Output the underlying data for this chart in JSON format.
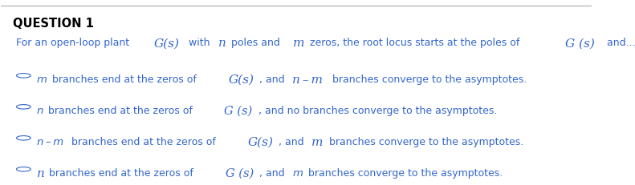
{
  "title": "QUESTION 1",
  "background_color": "#ffffff",
  "top_line_color": "#aaaaaa",
  "title_color": "#000000",
  "title_fontsize": 10.5,
  "question_color": "#3366cc",
  "option_color": "#3366cc",
  "figsize": [
    7.91,
    2.32
  ],
  "dpi": 100,
  "question_text_parts": [
    {
      "text": "For an open-loop plant ",
      "style": "normal",
      "size": 9
    },
    {
      "text": "G(s)",
      "style": "italic_large",
      "size": 11
    },
    {
      "text": " with ",
      "style": "normal",
      "size": 9
    },
    {
      "text": "n",
      "style": "italic_large",
      "size": 11
    },
    {
      "text": " poles and ",
      "style": "normal",
      "size": 9
    },
    {
      "text": "m",
      "style": "italic_large",
      "size": 11
    },
    {
      "text": " zeros, the root locus starts at the poles of ",
      "style": "normal",
      "size": 9
    },
    {
      "text": "G (s)",
      "style": "italic_large",
      "size": 11
    },
    {
      "text": "  and...",
      "style": "normal",
      "size": 9
    }
  ],
  "options": [
    {
      "parts": [
        {
          "text": "m",
          "style": "italic",
          "size": 9.5
        },
        {
          "text": " branches end at the zeros of ",
          "style": "normal",
          "size": 9
        },
        {
          "text": "G(s)",
          "style": "italic_large",
          "size": 11
        },
        {
          "text": ", and ",
          "style": "normal",
          "size": 9
        },
        {
          "text": "n – m",
          "style": "italic_large",
          "size": 11
        },
        {
          "text": " branches converge to the asymptotes.",
          "style": "normal",
          "size": 9
        }
      ]
    },
    {
      "parts": [
        {
          "text": "n",
          "style": "italic",
          "size": 9.5
        },
        {
          "text": " branches end at the zeros of ",
          "style": "normal",
          "size": 9
        },
        {
          "text": "G (s)",
          "style": "italic_large",
          "size": 10.5
        },
        {
          "text": ", and no branches converge to the asymptotes.",
          "style": "normal",
          "size": 9
        }
      ]
    },
    {
      "parts": [
        {
          "text": "n – m",
          "style": "italic",
          "size": 9.5
        },
        {
          "text": " branches end at the zeros of ",
          "style": "normal",
          "size": 9
        },
        {
          "text": "G(s)",
          "style": "italic_large",
          "size": 11
        },
        {
          "text": ", and ",
          "style": "normal",
          "size": 9
        },
        {
          "text": "m",
          "style": "italic_large",
          "size": 11
        },
        {
          "text": " branches converge to the asymptotes.",
          "style": "normal",
          "size": 9
        }
      ]
    },
    {
      "parts": [
        {
          "text": "n",
          "style": "italic_large",
          "size": 11
        },
        {
          "text": " branches end at the zeros of ",
          "style": "normal",
          "size": 9
        },
        {
          "text": "G (s)",
          "style": "italic_large",
          "size": 10.5
        },
        {
          "text": ", and ",
          "style": "normal",
          "size": 9
        },
        {
          "text": "m",
          "style": "italic",
          "size": 9.5
        },
        {
          "text": " branches converge to the asymptotes.",
          "style": "normal",
          "size": 9
        }
      ]
    }
  ]
}
